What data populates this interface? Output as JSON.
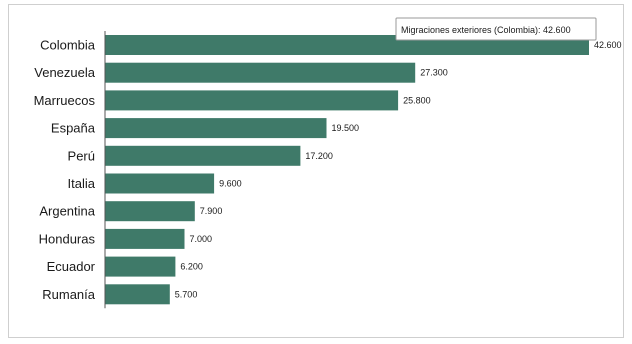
{
  "chart_data": {
    "type": "bar",
    "orientation": "horizontal",
    "categories": [
      "Colombia",
      "Venezuela",
      "Marruecos",
      "España",
      "Perú",
      "Italia",
      "Argentina",
      "Honduras",
      "Ecuador",
      "Rumanía"
    ],
    "values": [
      42600,
      27300,
      25800,
      19500,
      17200,
      9600,
      7900,
      7000,
      6200,
      5700
    ],
    "value_labels": [
      "42.600",
      "27.300",
      "25.800",
      "19.500",
      "17.200",
      "9.600",
      "7.900",
      "7.000",
      "6.200",
      "5.700"
    ],
    "xlim": [
      0,
      42600
    ],
    "bar_color": "#3f7a69",
    "grid": false,
    "title": "",
    "xlabel": "",
    "ylabel": ""
  },
  "tooltip": {
    "text": "Migraciones exteriores (Colombia): 42.600"
  }
}
